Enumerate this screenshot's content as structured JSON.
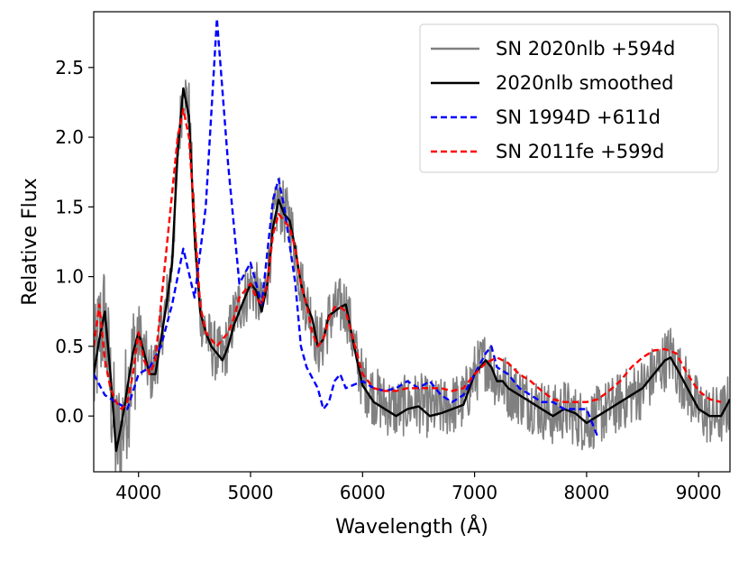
{
  "chart_data": {
    "type": "line",
    "title": "",
    "xlabel": "Wavelength (Å)",
    "ylabel": "Relative Flux",
    "xlim": [
      3600,
      9280
    ],
    "ylim": [
      -0.4,
      2.9
    ],
    "xticks": [
      4000,
      5000,
      6000,
      7000,
      8000,
      9000
    ],
    "xtick_labels": [
      "4000",
      "5000",
      "6000",
      "7000",
      "8000",
      "9000"
    ],
    "yticks": [
      0.0,
      0.5,
      1.0,
      1.5,
      2.0,
      2.5
    ],
    "ytick_labels": [
      "0.0",
      "0.5",
      "1.0",
      "1.5",
      "2.0",
      "2.5"
    ],
    "legend_position": "top-right",
    "series": [
      {
        "name": "SN 2020nlb +594d",
        "color": "#808080",
        "style": "solid",
        "noisy": true,
        "x": [
          3600,
          3650,
          3700,
          3750,
          3800,
          3850,
          3900,
          3950,
          4000,
          4050,
          4100,
          4150,
          4200,
          4250,
          4300,
          4350,
          4400,
          4450,
          4500,
          4550,
          4600,
          4650,
          4700,
          4750,
          4800,
          4850,
          4900,
          4950,
          5000,
          5050,
          5100,
          5150,
          5200,
          5250,
          5300,
          5350,
          5400,
          5450,
          5500,
          5550,
          5600,
          5650,
          5700,
          5750,
          5800,
          5850,
          5900,
          5950,
          6000,
          6100,
          6200,
          6300,
          6400,
          6500,
          6600,
          6700,
          6800,
          6900,
          7000,
          7100,
          7150,
          7200,
          7250,
          7300,
          7400,
          7500,
          7600,
          7700,
          7800,
          7900,
          8000,
          8100,
          8200,
          8300,
          8400,
          8500,
          8600,
          8650,
          8700,
          8750,
          8800,
          8900,
          9000,
          9100,
          9200,
          9280
        ],
        "values": [
          0.25,
          0.6,
          0.7,
          0.2,
          -0.2,
          -0.1,
          0.15,
          0.4,
          0.6,
          0.45,
          0.3,
          0.35,
          0.6,
          0.8,
          1.1,
          1.9,
          2.35,
          2.2,
          1.3,
          0.75,
          0.6,
          0.5,
          0.45,
          0.4,
          0.55,
          0.7,
          0.8,
          0.85,
          0.95,
          0.9,
          0.75,
          1.0,
          1.35,
          1.55,
          1.45,
          1.4,
          1.2,
          0.95,
          0.8,
          0.7,
          0.5,
          0.55,
          0.7,
          0.75,
          0.78,
          0.8,
          0.6,
          0.4,
          0.25,
          0.15,
          0.08,
          0.05,
          0.08,
          0.1,
          0.05,
          0.05,
          0.08,
          0.1,
          0.3,
          0.4,
          0.35,
          0.25,
          0.25,
          0.2,
          0.15,
          0.1,
          0.05,
          0.0,
          0.05,
          0.0,
          -0.05,
          0.0,
          0.05,
          0.1,
          0.15,
          0.2,
          0.3,
          0.35,
          0.4,
          0.45,
          0.35,
          0.2,
          0.05,
          0.0,
          0.0,
          0.1
        ]
      },
      {
        "name": "2020nlb smoothed",
        "color": "#000000",
        "style": "solid",
        "noisy": false,
        "x": [
          3600,
          3650,
          3700,
          3750,
          3800,
          3850,
          3900,
          3950,
          4000,
          4050,
          4100,
          4150,
          4200,
          4250,
          4300,
          4350,
          4400,
          4450,
          4500,
          4550,
          4600,
          4650,
          4700,
          4750,
          4800,
          4850,
          4900,
          4950,
          5000,
          5050,
          5100,
          5150,
          5200,
          5250,
          5300,
          5350,
          5400,
          5450,
          5500,
          5550,
          5600,
          5650,
          5700,
          5750,
          5800,
          5850,
          5900,
          5950,
          6000,
          6100,
          6200,
          6300,
          6400,
          6500,
          6600,
          6700,
          6800,
          6900,
          7000,
          7100,
          7150,
          7200,
          7250,
          7300,
          7400,
          7500,
          7600,
          7700,
          7800,
          7900,
          8000,
          8100,
          8200,
          8300,
          8400,
          8500,
          8600,
          8650,
          8700,
          8750,
          8800,
          8900,
          9000,
          9100,
          9200,
          9280
        ],
        "values": [
          0.3,
          0.55,
          0.75,
          0.3,
          -0.25,
          -0.05,
          0.2,
          0.45,
          0.6,
          0.45,
          0.3,
          0.3,
          0.55,
          0.8,
          1.1,
          1.9,
          2.35,
          2.15,
          1.3,
          0.75,
          0.6,
          0.5,
          0.45,
          0.4,
          0.5,
          0.65,
          0.75,
          0.85,
          0.95,
          0.9,
          0.75,
          0.95,
          1.35,
          1.55,
          1.45,
          1.4,
          1.2,
          0.95,
          0.8,
          0.7,
          0.5,
          0.55,
          0.72,
          0.75,
          0.78,
          0.8,
          0.6,
          0.4,
          0.22,
          0.1,
          0.05,
          0.0,
          0.05,
          0.07,
          0.0,
          0.02,
          0.05,
          0.08,
          0.3,
          0.4,
          0.35,
          0.25,
          0.25,
          0.2,
          0.15,
          0.1,
          0.05,
          0.0,
          0.05,
          0.02,
          -0.05,
          0.0,
          0.05,
          0.1,
          0.15,
          0.2,
          0.3,
          0.35,
          0.4,
          0.42,
          0.35,
          0.2,
          0.05,
          0.0,
          0.0,
          0.12
        ]
      },
      {
        "name": "SN 1994D +611d",
        "color": "#0000ff",
        "style": "dashed",
        "noisy": false,
        "x": [
          3600,
          3700,
          3800,
          3900,
          4000,
          4100,
          4200,
          4300,
          4400,
          4500,
          4600,
          4700,
          4800,
          4900,
          5000,
          5050,
          5100,
          5200,
          5250,
          5300,
          5400,
          5450,
          5500,
          5600,
          5650,
          5700,
          5750,
          5800,
          5850,
          6000,
          6100,
          6200,
          6300,
          6400,
          6500,
          6600,
          6700,
          6800,
          6900,
          7000,
          7100,
          7150,
          7200,
          7300,
          7400,
          7500,
          7600,
          7700,
          7800,
          7900,
          8000,
          8100
        ],
        "values": [
          0.3,
          0.15,
          0.1,
          0.05,
          0.3,
          0.35,
          0.5,
          0.8,
          1.2,
          0.85,
          1.5,
          2.85,
          1.8,
          0.95,
          1.1,
          0.95,
          0.8,
          1.55,
          1.7,
          1.5,
          0.95,
          0.5,
          0.35,
          0.2,
          0.05,
          0.1,
          0.25,
          0.3,
          0.2,
          0.25,
          0.2,
          0.18,
          0.2,
          0.25,
          0.2,
          0.25,
          0.15,
          0.1,
          0.15,
          0.3,
          0.45,
          0.5,
          0.35,
          0.3,
          0.2,
          0.15,
          0.1,
          0.1,
          0.05,
          0.05,
          0.05,
          -0.15
        ]
      },
      {
        "name": "SN 2011fe +599d",
        "color": "#ff0000",
        "style": "dashed",
        "noisy": false,
        "x": [
          3600,
          3650,
          3700,
          3750,
          3800,
          3850,
          3900,
          3950,
          4000,
          4050,
          4100,
          4150,
          4200,
          4250,
          4300,
          4350,
          4400,
          4450,
          4500,
          4550,
          4600,
          4650,
          4700,
          4750,
          4800,
          4850,
          4900,
          4950,
          5000,
          5050,
          5100,
          5150,
          5200,
          5250,
          5300,
          5350,
          5400,
          5450,
          5500,
          5550,
          5600,
          5650,
          5700,
          5750,
          5800,
          5850,
          5900,
          5950,
          6000,
          6100,
          6200,
          6300,
          6400,
          6500,
          6600,
          6700,
          6800,
          6900,
          7000,
          7100,
          7200,
          7300,
          7400,
          7500,
          7600,
          7700,
          7800,
          7900,
          8000,
          8100,
          8200,
          8300,
          8400,
          8500,
          8600,
          8700,
          8800,
          8900,
          9000,
          9100,
          9200
        ],
        "values": [
          0.5,
          0.8,
          0.4,
          0.2,
          0.1,
          0.05,
          0.1,
          0.3,
          0.6,
          0.4,
          0.3,
          0.4,
          0.8,
          1.2,
          1.6,
          2.0,
          2.2,
          2.0,
          1.4,
          0.8,
          0.6,
          0.55,
          0.5,
          0.55,
          0.6,
          0.7,
          0.85,
          0.9,
          0.95,
          0.85,
          0.8,
          0.95,
          1.3,
          1.45,
          1.4,
          1.35,
          1.2,
          0.95,
          0.8,
          0.6,
          0.5,
          0.55,
          0.7,
          0.78,
          0.78,
          0.75,
          0.6,
          0.45,
          0.3,
          0.2,
          0.18,
          0.18,
          0.2,
          0.2,
          0.2,
          0.2,
          0.18,
          0.2,
          0.3,
          0.38,
          0.42,
          0.38,
          0.3,
          0.25,
          0.18,
          0.12,
          0.1,
          0.1,
          0.1,
          0.12,
          0.18,
          0.25,
          0.35,
          0.42,
          0.47,
          0.48,
          0.45,
          0.3,
          0.18,
          0.12,
          0.1
        ]
      }
    ]
  }
}
